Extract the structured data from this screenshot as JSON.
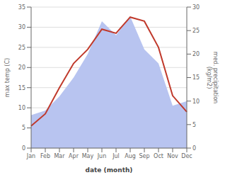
{
  "chart_data": {
    "type": "line",
    "xlabel": "date (month)",
    "ylabel": "max temp (C)",
    "y2label": "med. precipitation\n(kg/m2)",
    "categories": [
      "Jan",
      "Feb",
      "Mar",
      "Apr",
      "May",
      "Jun",
      "Jul",
      "Aug",
      "Sep",
      "Oct",
      "Nov",
      "Dec"
    ],
    "series": [
      {
        "type": "area",
        "axis": "y2",
        "color": "#b8c4f0",
        "values": [
          7.0,
          8.0,
          11.0,
          15.0,
          20.0,
          27.0,
          24.0,
          28.0,
          21.0,
          18.0,
          9.0,
          10.0
        ]
      },
      {
        "type": "line",
        "color": "#c0392b",
        "values": [
          5.5,
          8.5,
          15.0,
          21.0,
          24.5,
          29.5,
          28.5,
          32.5,
          31.5,
          25.0,
          13.0,
          9.0
        ]
      }
    ],
    "ylim": [
      0,
      35
    ],
    "yticks": [
      0,
      5,
      10,
      15,
      20,
      25,
      30,
      35
    ],
    "y2lim": [
      0,
      30
    ],
    "y2ticks": [
      0,
      5,
      10,
      15,
      20,
      25,
      30
    ],
    "grid": true
  }
}
